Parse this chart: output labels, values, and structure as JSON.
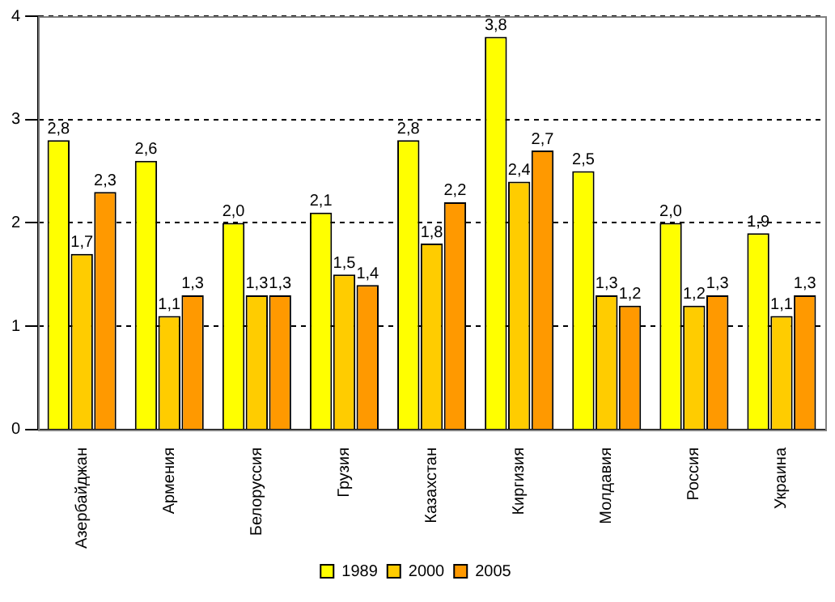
{
  "chart_data": {
    "type": "bar",
    "categories": [
      "Азербайджан",
      "Армения",
      "Белоруссия",
      "Грузия",
      "Казахстан",
      "Киргизия",
      "Молдавия",
      "Россия",
      "Украина"
    ],
    "series": [
      {
        "name": "1989",
        "color": "#ffff00",
        "values": [
          2.8,
          2.6,
          2.0,
          2.1,
          2.8,
          3.8,
          2.5,
          2.0,
          1.9
        ],
        "value_labels": [
          "2,8",
          "2,6",
          "2,0",
          "2,1",
          "2,8",
          "3,8",
          "2,5",
          "2,0",
          "1,9"
        ]
      },
      {
        "name": "2000",
        "color": "#ffcc00",
        "values": [
          1.7,
          1.1,
          1.3,
          1.5,
          1.8,
          2.4,
          1.3,
          1.2,
          1.1
        ],
        "value_labels": [
          "1,7",
          "1,1",
          "1,3",
          "1,5",
          "1,8",
          "2,4",
          "1,3",
          "1,2",
          "1,1"
        ]
      },
      {
        "name": "2005",
        "color": "#ff9900",
        "values": [
          2.3,
          1.3,
          1.3,
          1.4,
          2.2,
          2.7,
          1.2,
          1.3,
          1.3
        ],
        "value_labels": [
          "2,3",
          "1,3",
          "1,3",
          "1,4",
          "2,2",
          "2,7",
          "1,2",
          "1,3",
          "1,3"
        ]
      }
    ],
    "ylim": [
      0,
      4
    ],
    "yticks": [
      0,
      1,
      2,
      3,
      4
    ],
    "grid": "y",
    "legend": "bottom"
  }
}
